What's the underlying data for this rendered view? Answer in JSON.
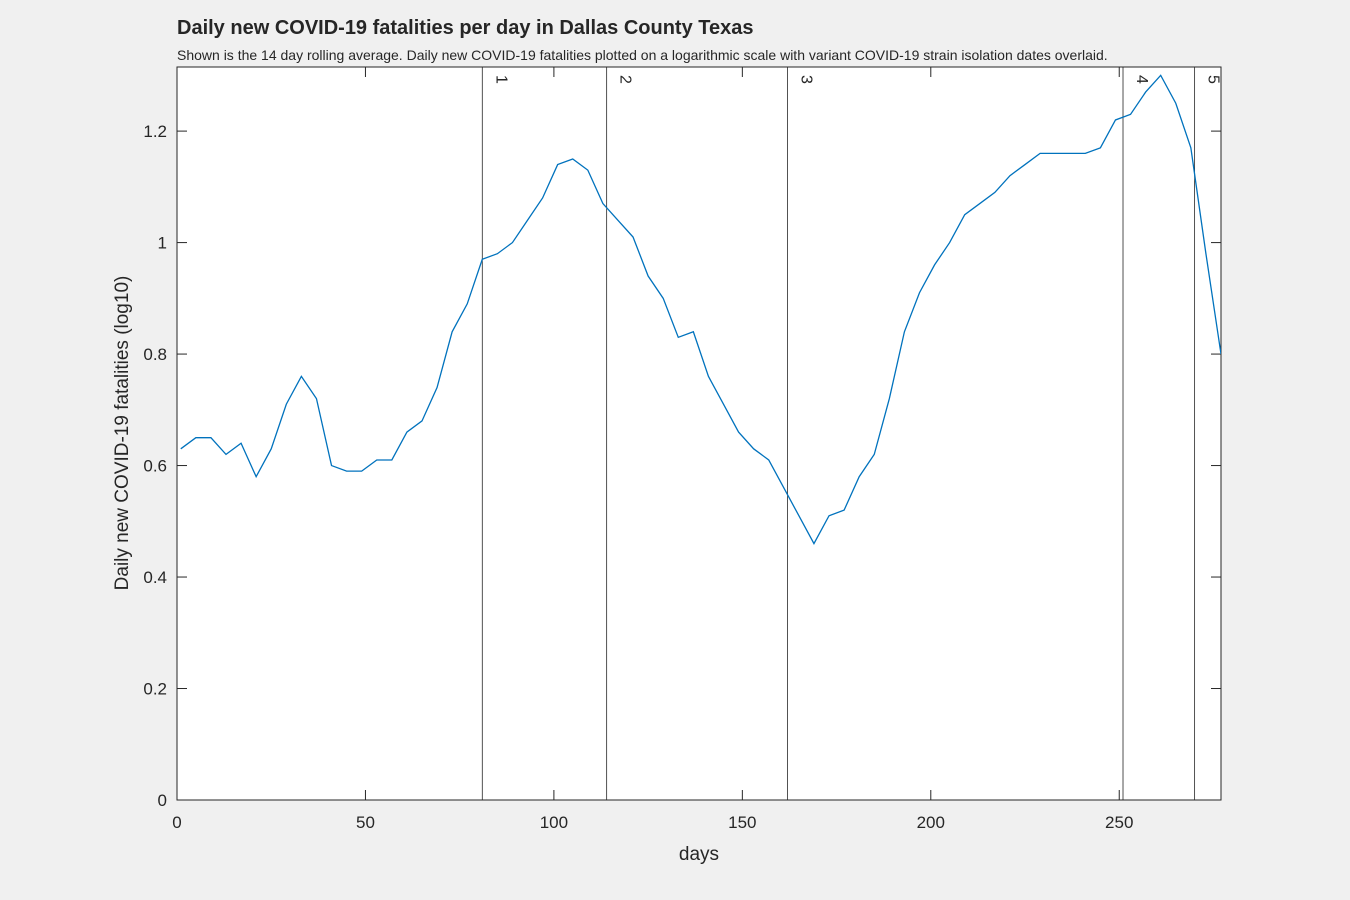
{
  "chart_data": {
    "type": "line",
    "title": "Daily new COVID-19 fatalities per day in Dallas County Texas",
    "subtitle": "Shown is the 14 day rolling average. Daily new COVID-19 fatalities plotted on a logarithmic scale with variant COVID-19 strain isolation dates overlaid.",
    "xlabel": "days",
    "ylabel": "Daily new COVID-19 fatalities (log10)",
    "x": [
      1,
      5,
      9,
      13,
      17,
      21,
      25,
      29,
      33,
      37,
      41,
      45,
      49,
      53,
      57,
      61,
      65,
      69,
      73,
      77,
      81,
      85,
      89,
      93,
      97,
      101,
      105,
      109,
      113,
      117,
      121,
      125,
      129,
      133,
      137,
      141,
      145,
      149,
      153,
      157,
      161,
      165,
      169,
      173,
      177,
      181,
      185,
      189,
      193,
      197,
      201,
      205,
      209,
      213,
      217,
      221,
      225,
      229,
      233,
      237,
      241,
      245,
      249,
      253,
      257,
      261,
      265,
      269,
      273,
      277
    ],
    "series": [
      {
        "color": "#0072bd",
        "values": [
          0.63,
          0.65,
          0.65,
          0.62,
          0.64,
          0.58,
          0.63,
          0.71,
          0.76,
          0.72,
          0.6,
          0.59,
          0.59,
          0.61,
          0.61,
          0.66,
          0.68,
          0.74,
          0.84,
          0.89,
          0.97,
          0.98,
          1.0,
          1.04,
          1.08,
          1.14,
          1.15,
          1.13,
          1.07,
          1.04,
          1.01,
          0.94,
          0.9,
          0.83,
          0.84,
          0.76,
          0.71,
          0.66,
          0.63,
          0.61,
          0.56,
          0.51,
          0.46,
          0.51,
          0.52,
          0.58,
          0.62,
          0.72,
          0.84,
          0.91,
          0.96,
          1.0,
          1.05,
          1.07,
          1.09,
          1.12,
          1.14,
          1.16,
          1.16,
          1.16,
          1.16,
          1.17,
          1.22,
          1.23,
          1.27,
          1.3,
          1.25,
          1.17,
          0.98,
          0.8
        ]
      }
    ],
    "variants": {
      "x": [
        81,
        114,
        162,
        251,
        270
      ],
      "labels": [
        "1",
        "2",
        "3",
        "4",
        "5"
      ]
    },
    "xlim": [
      0,
      277
    ],
    "ylim": [
      0,
      1.315
    ],
    "xticks": [
      0,
      50,
      100,
      150,
      200,
      250
    ],
    "yticks": [
      0,
      0.2,
      0.4,
      0.6,
      0.8,
      1,
      1.2
    ]
  }
}
